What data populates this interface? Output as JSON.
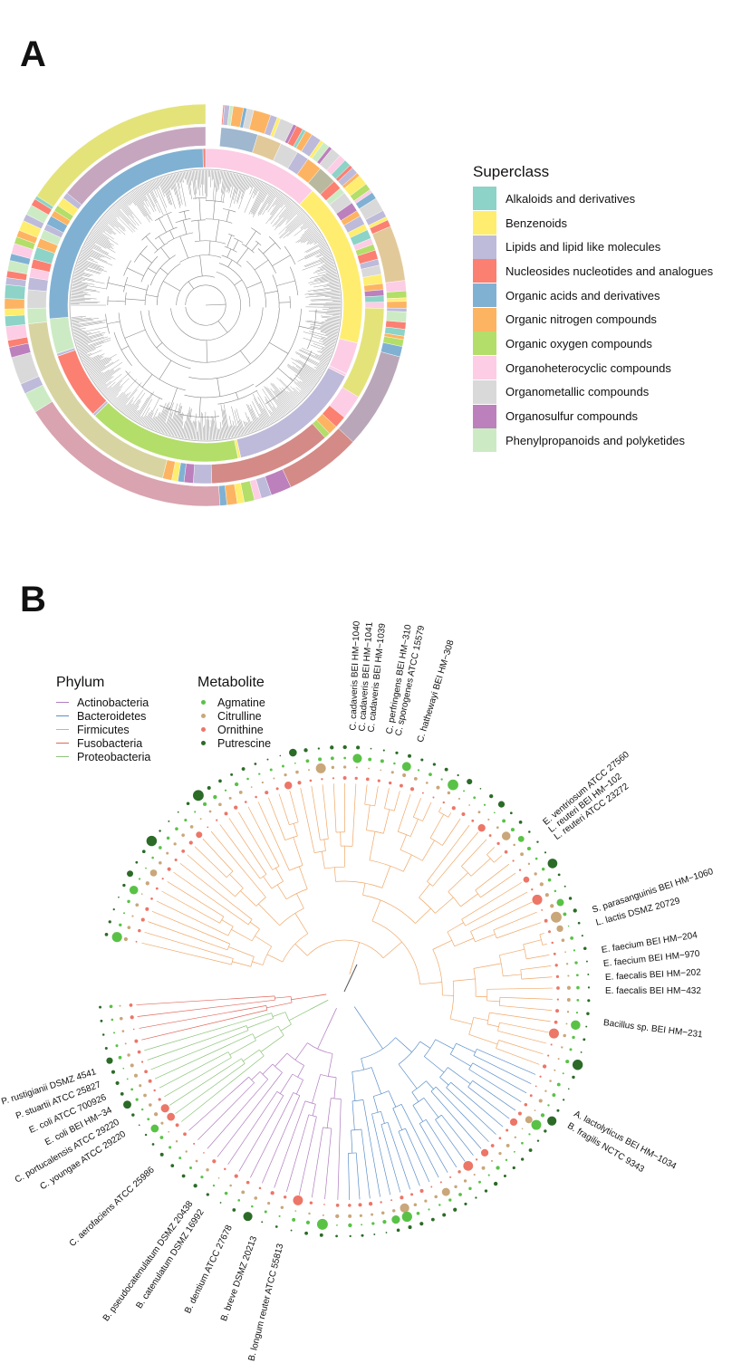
{
  "panels": {
    "a": "A",
    "b": "B"
  },
  "superclass_legend": {
    "title": "Superclass",
    "items": [
      {
        "label": "Alkaloids and derivatives",
        "color": "#8dd3c7"
      },
      {
        "label": "Benzenoids",
        "color": "#ffed6f"
      },
      {
        "label": "Lipids and lipid like molecules",
        "color": "#bebada"
      },
      {
        "label": "Nucleosides nucleotides and analogues",
        "color": "#fb8072"
      },
      {
        "label": "Organic acids and derivatives",
        "color": "#80b1d3"
      },
      {
        "label": "Organic nitrogen compounds",
        "color": "#fdb462"
      },
      {
        "label": "Organic oxygen compounds",
        "color": "#b3de69"
      },
      {
        "label": "Organoheterocyclic compounds",
        "color": "#fccde5"
      },
      {
        "label": "Organometallic compounds",
        "color": "#d9d9d9"
      },
      {
        "label": "Organosulfur compounds",
        "color": "#bc80bd"
      },
      {
        "label": "Phenylpropanoids and polyketides",
        "color": "#ccebc5"
      }
    ]
  },
  "inner_ring_segments": [
    {
      "start": 270,
      "end": 352,
      "color": "#80b1d3"
    },
    {
      "start": 352,
      "end": 400,
      "color": "#fccde5"
    },
    {
      "start": 400,
      "end": 464,
      "color": "#ffed6f"
    },
    {
      "start": 464,
      "end": 479,
      "color": "#fccde5"
    },
    {
      "start": 479,
      "end": 538,
      "color": "#bebada"
    },
    {
      "start": 538,
      "end": 612,
      "color": "#b3de69"
    },
    {
      "start": 612,
      "end": 638,
      "color": "#fb8072"
    },
    {
      "start": 638,
      "end": 651,
      "color": "#ccebc5"
    },
    {
      "start": 651,
      "end": 661,
      "color": "#fdb462"
    },
    {
      "start": 661,
      "end": 630,
      "color": "#ffffff"
    }
  ],
  "phylum_legend": {
    "title": "Phylum",
    "items": [
      {
        "label": "Actinobacteria",
        "color": "#b07cc0"
      },
      {
        "label": "Bacteroidetes",
        "color": "#5b8fc9"
      },
      {
        "label": "Firmicutes",
        "color": "#f0a868"
      },
      {
        "label": "Fusobacteria",
        "color": "#e0675b"
      },
      {
        "label": "Proteobacteria",
        "color": "#8cc47a"
      }
    ]
  },
  "metabolite_legend": {
    "title": "Metabolite",
    "items": [
      {
        "label": "Agmatine",
        "color": "#59c246"
      },
      {
        "label": "Citrulline",
        "color": "#c9a77a"
      },
      {
        "label": "Ornithine",
        "color": "#ec7668"
      },
      {
        "label": "Putrescine",
        "color": "#2b6b27"
      }
    ]
  },
  "tip_labels": [
    {
      "text": "C. cadaveris BEI HM−1040",
      "angle": -88
    },
    {
      "text": "C. cadaveris BEI HM−1041",
      "angle": -86
    },
    {
      "text": "C. cadaveris BEI HM−1039",
      "angle": -84
    },
    {
      "text": "C. perfringens BEI HM−310",
      "angle": -80
    },
    {
      "text": "C. sporogenes ATCC 15579",
      "angle": -78
    },
    {
      "text": "C. hathewayi BEI HM−308",
      "angle": -73
    },
    {
      "text": "E. ventriosum ATCC 27560",
      "angle": -40
    },
    {
      "text": "L. reuteri BEI HM−102",
      "angle": -38
    },
    {
      "text": "L. reuteri ATCC 23272",
      "angle": -36
    },
    {
      "text": "S. parasanguinis BEI HM−1060",
      "angle": -18
    },
    {
      "text": "L. lactis DSMZ 20729",
      "angle": -15
    },
    {
      "text": "E. faecium BEI HM−204",
      "angle": -9
    },
    {
      "text": "E. faecium BEI HM−970",
      "angle": -6
    },
    {
      "text": "E. faecalis BEI HM−202",
      "angle": -3
    },
    {
      "text": "E. faecalis BEI HM−432",
      "angle": 0
    },
    {
      "text": "Bacillus sp. BEI HM−231",
      "angle": 7
    },
    {
      "text": "A. lactolyticus BEI HM−1034",
      "angle": 28
    },
    {
      "text": "B. fragilis NCTC 9343",
      "angle": 31
    },
    {
      "text": "P. rustigianii DSMZ 4541",
      "angle": 162
    },
    {
      "text": "P. stuartii ATCC 25827",
      "angle": 159
    },
    {
      "text": "E. coli ATCC 700926",
      "angle": 156
    },
    {
      "text": "E. coli BEI HM−34",
      "angle": 153
    },
    {
      "text": "C. portucalensis ATCC 29220",
      "angle": 150
    },
    {
      "text": "C. youngae ATCC 29220",
      "angle": 147
    },
    {
      "text": "C. aerofaciens ATCC 25986",
      "angle": 137
    },
    {
      "text": "B. pseudocatenulatum DSMZ 20438",
      "angle": 126
    },
    {
      "text": "B. catenulatum DSMZ 16992",
      "angle": 123
    },
    {
      "text": "B. dentium ATCC 27678",
      "angle": 116
    },
    {
      "text": "B. breve DSMZ 20213",
      "angle": 110
    },
    {
      "text": "B. longum reuter ATCC 55813",
      "angle": 104
    }
  ]
}
